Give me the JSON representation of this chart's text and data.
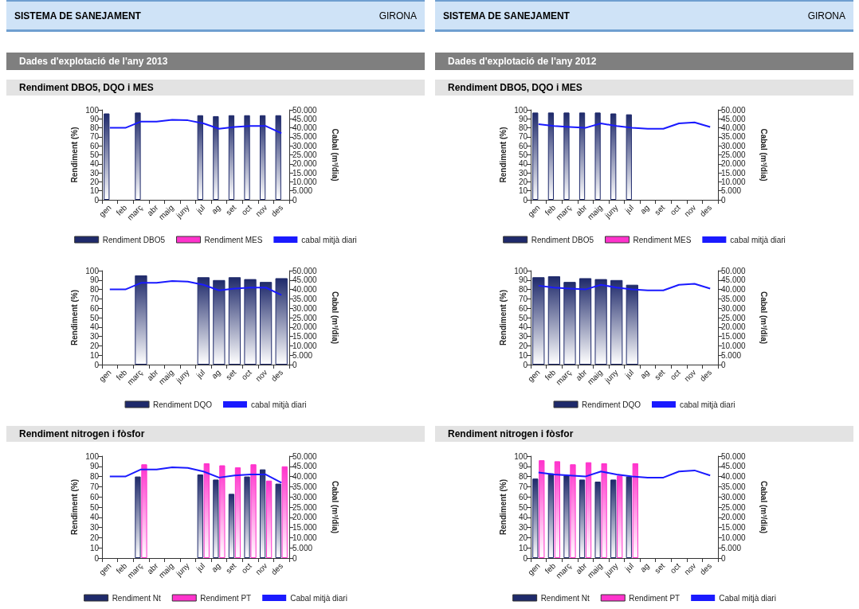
{
  "chart_data": [
    {
      "type": "bar",
      "annotations": [
        "SISTEMA DE SANEJAMENT",
        "GIRONA",
        "Dades d'explotació de l'any 2013"
      ],
      "title": "Rendiment DBO5, DQO i MES",
      "categories": [
        "gen",
        "feb",
        "març",
        "abr",
        "maig",
        "juny",
        "jul",
        "ag",
        "set",
        "oct",
        "nov",
        "des"
      ],
      "ylabel": "Rendiment (%)",
      "y2label": "Cabal (m³/dia)",
      "ylim": [
        0,
        100
      ],
      "yticks": [
        0,
        10,
        20,
        30,
        40,
        50,
        60,
        70,
        80,
        90,
        100
      ],
      "y2lim": [
        0,
        50000
      ],
      "y2ticks": [
        {
          "value": 0,
          "label": "0"
        },
        {
          "value": 5000,
          "label": "5.000"
        },
        {
          "value": 10000,
          "label": "10.000"
        },
        {
          "value": 15000,
          "label": "15.000"
        },
        {
          "value": 20000,
          "label": "20.000"
        },
        {
          "value": 25000,
          "label": "25.000"
        },
        {
          "value": 30000,
          "label": "30.000"
        },
        {
          "value": 35000,
          "label": "35.000"
        },
        {
          "value": 40000,
          "label": "40.000"
        },
        {
          "value": 45000,
          "label": "45.000"
        },
        {
          "value": 50000,
          "label": "50.000"
        }
      ],
      "legend": "bottom",
      "series": [
        {
          "name": "Rendiment DBO5",
          "color": "#1f2a6b",
          "values": [
            96,
            null,
            97,
            null,
            null,
            null,
            94,
            93,
            94,
            94,
            94,
            94
          ]
        },
        {
          "name": "Rendiment MES",
          "color": "#ff33cc",
          "values": [
            null,
            null,
            null,
            null,
            null,
            null,
            null,
            null,
            null,
            null,
            null,
            null
          ]
        },
        {
          "name": "cabal mitjà diari",
          "type": "line",
          "axis": "y2",
          "color": "#1a1aff",
          "values": [
            40000,
            40000,
            43500,
            43500,
            44500,
            44200,
            42500,
            39500,
            40500,
            41000,
            41000,
            37000
          ]
        }
      ]
    },
    {
      "type": "bar",
      "categories": [
        "gen",
        "feb",
        "març",
        "abr",
        "maig",
        "juny",
        "jul",
        "ag",
        "set",
        "oct",
        "nov",
        "des"
      ],
      "ylabel": "Rendiment (%)",
      "y2label": "Cabal (m³/dia)",
      "ylim": [
        0,
        100
      ],
      "yticks": [
        0,
        10,
        20,
        30,
        40,
        50,
        60,
        70,
        80,
        90,
        100
      ],
      "y2lim": [
        0,
        50000
      ],
      "y2ticks": [
        {
          "value": 0,
          "label": "0"
        },
        {
          "value": 5000,
          "label": "5.000"
        },
        {
          "value": 10000,
          "label": "10.000"
        },
        {
          "value": 15000,
          "label": "15.000"
        },
        {
          "value": 20000,
          "label": "20.000"
        },
        {
          "value": 25000,
          "label": "25.000"
        },
        {
          "value": 30000,
          "label": "30.000"
        },
        {
          "value": 35000,
          "label": "35.000"
        },
        {
          "value": 40000,
          "label": "40.000"
        },
        {
          "value": 45000,
          "label": "45.000"
        },
        {
          "value": 50000,
          "label": "50.000"
        }
      ],
      "legend": "bottom",
      "series": [
        {
          "name": "Rendiment DQO",
          "color": "#1f2a6b",
          "values": [
            null,
            null,
            95,
            null,
            null,
            null,
            93,
            90,
            93,
            91,
            88,
            92
          ]
        },
        {
          "name": "cabal mitjà diari",
          "type": "line",
          "axis": "y2",
          "color": "#1a1aff",
          "values": [
            40000,
            40000,
            43500,
            43500,
            44500,
            44200,
            42500,
            39500,
            40500,
            41000,
            41000,
            37000
          ]
        }
      ]
    },
    {
      "type": "bar",
      "title": "Rendiment nitrogen i fòsfor",
      "categories": [
        "gen",
        "feb",
        "març",
        "abr",
        "maig",
        "juny",
        "jul",
        "ag",
        "set",
        "oct",
        "nov",
        "des"
      ],
      "ylabel": "Rendiment (%)",
      "y2label": "Cabal (m³/dia)",
      "ylim": [
        0,
        100
      ],
      "yticks": [
        0,
        10,
        20,
        30,
        40,
        50,
        60,
        70,
        80,
        90,
        100
      ],
      "y2lim": [
        0,
        50000
      ],
      "y2ticks": [
        {
          "value": 0,
          "label": "0"
        },
        {
          "value": 5000,
          "label": "5.000"
        },
        {
          "value": 10000,
          "label": "10.000"
        },
        {
          "value": 15000,
          "label": "15.000"
        },
        {
          "value": 20000,
          "label": "20.000"
        },
        {
          "value": 25000,
          "label": "25.000"
        },
        {
          "value": 30000,
          "label": "30.000"
        },
        {
          "value": 35000,
          "label": "35.000"
        },
        {
          "value": 40000,
          "label": "40.000"
        },
        {
          "value": 45000,
          "label": "45.000"
        },
        {
          "value": 50000,
          "label": "50.000"
        }
      ],
      "legend": "bottom",
      "series": [
        {
          "name": "Rendiment Nt",
          "color": "#1f2a6b",
          "values": [
            null,
            null,
            80,
            null,
            null,
            null,
            82,
            77,
            63,
            80,
            87,
            73
          ]
        },
        {
          "name": "Rendiment PT",
          "color": "#ff33cc",
          "values": [
            null,
            null,
            92,
            null,
            null,
            null,
            93,
            91,
            89,
            92,
            76,
            90
          ]
        },
        {
          "name": "Cabal mitjà diari",
          "type": "line",
          "axis": "y2",
          "color": "#1a1aff",
          "values": [
            40000,
            40000,
            43500,
            43500,
            44500,
            44200,
            42500,
            39500,
            40500,
            41000,
            41000,
            37000
          ]
        }
      ]
    },
    {
      "type": "bar",
      "annotations": [
        "SISTEMA DE SANEJAMENT",
        "GIRONA",
        "Dades d'explotació de l'any 2012"
      ],
      "title": "Rendiment DBO5, DQO i MES",
      "categories": [
        "gen",
        "feb",
        "març",
        "abr",
        "maig",
        "juny",
        "jul",
        "ag",
        "set",
        "oct",
        "nov",
        "des"
      ],
      "ylabel": "Rendiment (%)",
      "y2label": "Cabal (m³/dia)",
      "ylim": [
        0,
        100
      ],
      "yticks": [
        0,
        10,
        20,
        30,
        40,
        50,
        60,
        70,
        80,
        90,
        100
      ],
      "y2lim": [
        0,
        50000
      ],
      "y2ticks": [
        {
          "value": 0,
          "label": "0"
        },
        {
          "value": 5000,
          "label": "5.000"
        },
        {
          "value": 10000,
          "label": "10.000"
        },
        {
          "value": 15000,
          "label": "15.000"
        },
        {
          "value": 20000,
          "label": "20.000"
        },
        {
          "value": 25000,
          "label": "25.000"
        },
        {
          "value": 30000,
          "label": "30.000"
        },
        {
          "value": 35000,
          "label": "35.000"
        },
        {
          "value": 40000,
          "label": "40.000"
        },
        {
          "value": 45000,
          "label": "45.000"
        },
        {
          "value": 50000,
          "label": "50.000"
        }
      ],
      "legend": "bottom",
      "series": [
        {
          "name": "Rendiment DBO5",
          "color": "#1f2a6b",
          "values": [
            97,
            97,
            97,
            97,
            97,
            96,
            95,
            null,
            null,
            null,
            null,
            null
          ]
        },
        {
          "name": "Rendiment MES",
          "color": "#ff33cc",
          "values": [
            null,
            null,
            null,
            null,
            null,
            null,
            null,
            null,
            null,
            null,
            null,
            null
          ]
        },
        {
          "name": "cabal mitjà diari",
          "type": "line",
          "axis": "y2",
          "color": "#1a1aff",
          "values": [
            42000,
            41000,
            40500,
            40000,
            42500,
            41000,
            40000,
            39500,
            39500,
            42500,
            43000,
            40500
          ]
        }
      ]
    },
    {
      "type": "bar",
      "categories": [
        "gen",
        "feb",
        "març",
        "abr",
        "maig",
        "juny",
        "jul",
        "ag",
        "set",
        "oct",
        "nov",
        "des"
      ],
      "ylabel": "Rendiment (%)",
      "y2label": "Cabal (m³/dia)",
      "ylim": [
        0,
        100
      ],
      "yticks": [
        0,
        10,
        20,
        30,
        40,
        50,
        60,
        70,
        80,
        90,
        100
      ],
      "y2lim": [
        0,
        50000
      ],
      "y2ticks": [
        {
          "value": 0,
          "label": "0"
        },
        {
          "value": 5000,
          "label": "5.000"
        },
        {
          "value": 10000,
          "label": "10.000"
        },
        {
          "value": 15000,
          "label": "15.000"
        },
        {
          "value": 20000,
          "label": "20.000"
        },
        {
          "value": 25000,
          "label": "25.000"
        },
        {
          "value": 30000,
          "label": "30.000"
        },
        {
          "value": 35000,
          "label": "35.000"
        },
        {
          "value": 40000,
          "label": "40.000"
        },
        {
          "value": 45000,
          "label": "45.000"
        },
        {
          "value": 50000,
          "label": "50.000"
        }
      ],
      "legend": "bottom",
      "series": [
        {
          "name": "Rendiment DQO",
          "color": "#1f2a6b",
          "values": [
            93,
            94,
            88,
            92,
            91,
            90,
            85,
            null,
            null,
            null,
            null,
            null
          ]
        },
        {
          "name": "cabal mitjà diari",
          "type": "line",
          "axis": "y2",
          "color": "#1a1aff",
          "values": [
            42000,
            41000,
            40500,
            40000,
            42500,
            41000,
            40000,
            39500,
            39500,
            42500,
            43000,
            40500
          ]
        }
      ]
    },
    {
      "type": "bar",
      "title": "Rendiment nitrogen i fòsfor",
      "categories": [
        "gen",
        "feb",
        "març",
        "abr",
        "maig",
        "juny",
        "jul",
        "ag",
        "set",
        "oct",
        "nov",
        "des"
      ],
      "ylabel": "Rendiment (%)",
      "y2label": "Cabal (m³/dia)",
      "ylim": [
        0,
        100
      ],
      "yticks": [
        0,
        10,
        20,
        30,
        40,
        50,
        60,
        70,
        80,
        90,
        100
      ],
      "y2lim": [
        0,
        50000
      ],
      "y2ticks": [
        {
          "value": 0,
          "label": "0"
        },
        {
          "value": 5000,
          "label": "5.000"
        },
        {
          "value": 10000,
          "label": "10.000"
        },
        {
          "value": 15000,
          "label": "15.000"
        },
        {
          "value": 20000,
          "label": "20.000"
        },
        {
          "value": 25000,
          "label": "25.000"
        },
        {
          "value": 30000,
          "label": "30.000"
        },
        {
          "value": 35000,
          "label": "35.000"
        },
        {
          "value": 40000,
          "label": "40.000"
        },
        {
          "value": 45000,
          "label": "45.000"
        },
        {
          "value": 50000,
          "label": "50.000"
        }
      ],
      "legend": "bottom",
      "series": [
        {
          "name": "Rendiment Nt",
          "color": "#1f2a6b",
          "values": [
            78,
            83,
            81,
            77,
            75,
            77,
            80,
            null,
            null,
            null,
            null,
            null
          ]
        },
        {
          "name": "Rendiment PT",
          "color": "#ff33cc",
          "values": [
            96,
            95,
            92,
            94,
            93,
            81,
            93,
            null,
            null,
            null,
            null,
            null
          ]
        },
        {
          "name": "Cabal mitjà diari",
          "type": "line",
          "axis": "y2",
          "color": "#1a1aff",
          "values": [
            42000,
            41000,
            40500,
            40000,
            42500,
            41000,
            40000,
            39500,
            39500,
            42500,
            43000,
            40500
          ]
        }
      ]
    }
  ]
}
